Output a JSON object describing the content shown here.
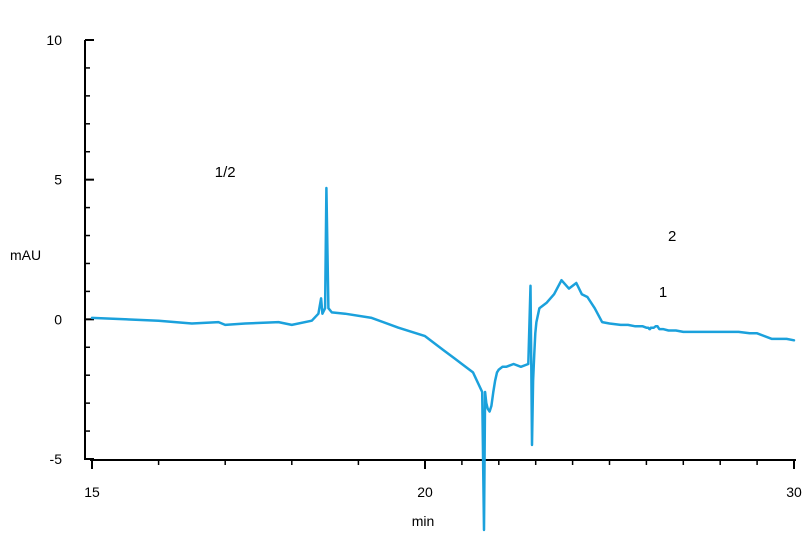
{
  "chart_data": {
    "type": "line",
    "title": "",
    "xlabel": "min",
    "ylabel": "mAU",
    "xlim": [
      15,
      30
    ],
    "ylim": [
      -5,
      10
    ],
    "x_ticks": [
      {
        "value": 15,
        "label": "15"
      },
      {
        "value": 20,
        "label": "20"
      },
      {
        "value": 30,
        "label": "30"
      }
    ],
    "y_ticks": [
      {
        "value": 10,
        "label": "10"
      },
      {
        "value": 5,
        "label": "5"
      },
      {
        "value": 0,
        "label": "0"
      },
      {
        "value": -5,
        "label": "-5"
      }
    ],
    "grid": false,
    "line_color": "#1BA1DC",
    "series": [
      {
        "x": [
          15.0,
          16.0,
          16.5,
          16.9,
          17.0,
          17.3,
          17.8,
          18.0,
          18.3,
          18.4,
          18.44,
          18.46,
          18.5,
          18.52,
          18.55,
          18.6,
          18.8,
          19.2,
          19.6,
          20.0,
          20.5,
          20.8,
          21.0,
          21.3,
          21.55,
          21.6,
          21.63,
          21.66,
          21.7,
          21.75,
          21.8,
          21.85,
          21.9,
          21.95,
          22.0,
          22.1,
          22.2,
          22.4,
          22.6,
          22.8,
          22.86,
          22.88,
          22.9,
          22.93,
          22.96,
          22.99,
          23.02,
          23.1,
          23.3,
          23.5,
          23.7,
          23.9,
          24.1,
          24.25,
          24.4,
          24.6,
          24.8,
          25.0,
          25.3,
          25.5,
          25.7,
          25.9,
          26.0,
          26.05,
          26.08,
          26.1,
          26.12,
          26.14,
          26.2,
          26.25,
          26.3,
          26.35,
          26.45,
          26.6,
          26.8,
          27.0,
          27.5,
          27.8,
          28.0,
          28.5,
          28.8,
          29.0,
          29.4,
          29.8,
          30.0
        ],
        "y": [
          0.05,
          -0.05,
          -0.15,
          -0.1,
          -0.2,
          -0.15,
          -0.1,
          -0.2,
          -0.05,
          0.2,
          0.75,
          0.2,
          0.4,
          4.7,
          0.4,
          0.25,
          0.2,
          0.05,
          -0.3,
          -0.6,
          -1.1,
          -1.4,
          -1.6,
          -1.9,
          -2.6,
          -12.0,
          -2.6,
          -3.0,
          -3.2,
          -3.3,
          -3.1,
          -2.6,
          -2.2,
          -1.9,
          -1.8,
          -1.7,
          -1.7,
          -1.6,
          -1.7,
          -1.6,
          1.2,
          -1.7,
          -4.5,
          -2.2,
          -1.3,
          -0.5,
          -0.1,
          0.4,
          0.6,
          0.9,
          1.4,
          1.1,
          1.3,
          0.9,
          0.8,
          0.4,
          -0.1,
          -0.15,
          -0.2,
          -0.2,
          -0.25,
          -0.25,
          -0.3,
          -0.3,
          -0.35,
          -0.35,
          -0.3,
          -0.3,
          -0.3,
          -0.25,
          -0.25,
          -0.35,
          -0.35,
          -0.4,
          -0.4,
          -0.45,
          -0.45,
          -0.45,
          -0.45,
          -0.45,
          -0.5,
          -0.5,
          -0.7,
          -0.7,
          -0.75
        ]
      }
    ],
    "annotations": [
      {
        "text": "1/2",
        "x": 17.0,
        "y": 5.1
      },
      {
        "text": "1",
        "x": 26.45,
        "y": 0.8
      },
      {
        "text": "2",
        "x": 26.7,
        "y": 2.8
      }
    ]
  }
}
